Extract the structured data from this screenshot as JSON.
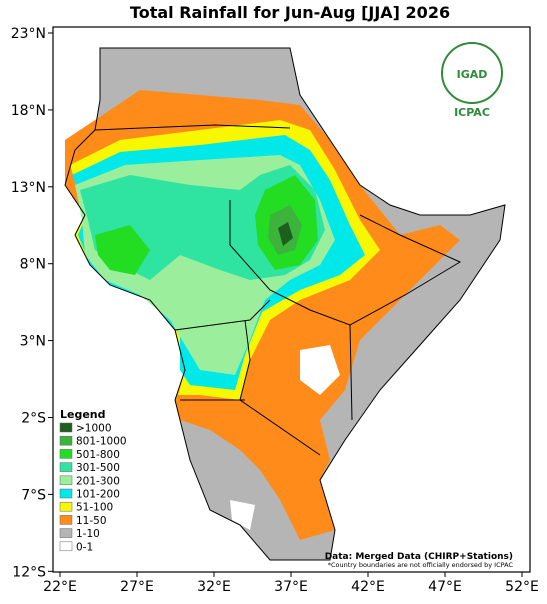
{
  "title": "Total Rainfall for Jun-Aug [JJA] 2026",
  "lat_ticks": [
    "23°N",
    "18°N",
    "13°N",
    "8°N",
    "3°N",
    "2°S",
    "7°S",
    "12°S"
  ],
  "lon_ticks": [
    "22°E",
    "27°E",
    "32°E",
    "37°E",
    "42°E",
    "47°E",
    "52°E"
  ],
  "logo": {
    "top": "IGAD",
    "bottom": "ICPAC"
  },
  "legend": {
    "title": "Legend",
    "items": [
      {
        "label": ">1000",
        "color": "#1e5e1e"
      },
      {
        "label": "801-1000",
        "color": "#3cb43c"
      },
      {
        "label": "501-800",
        "color": "#22dd22"
      },
      {
        "label": "301-500",
        "color": "#2fe3a0"
      },
      {
        "label": "201-300",
        "color": "#9bee9b"
      },
      {
        "label": "101-200",
        "color": "#00e8e8"
      },
      {
        "label": "51-100",
        "color": "#f7f700"
      },
      {
        "label": "11-50",
        "color": "#ff8c1a"
      },
      {
        "label": "1-10",
        "color": "#b5b5b5"
      },
      {
        "label": "0-1",
        "color": "#ffffff"
      }
    ]
  },
  "source": "Data: Merged Data (CHIRP+Stations)",
  "note": "*Country boundaries are not officially endorsed by ICPAC"
}
